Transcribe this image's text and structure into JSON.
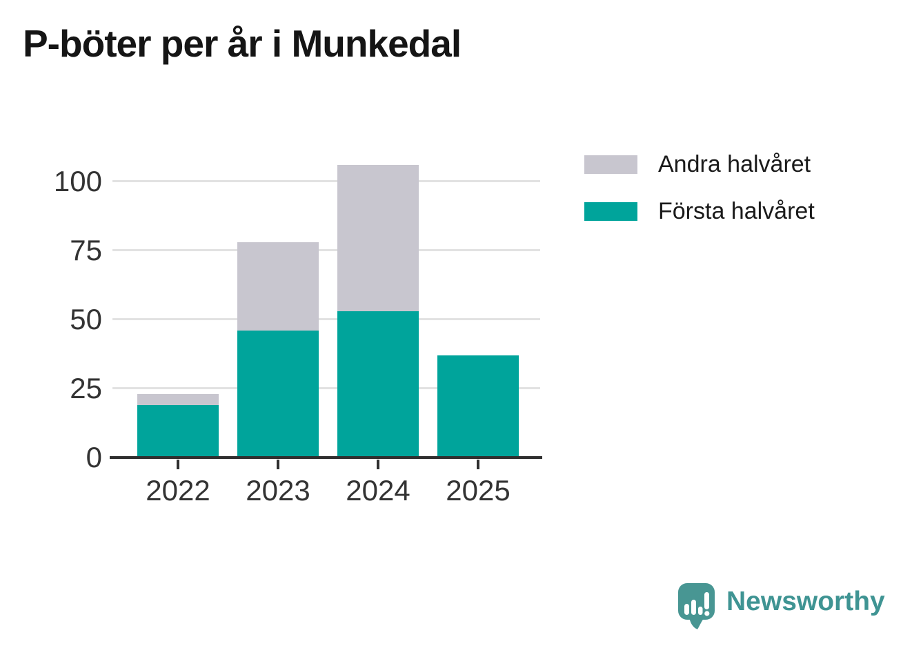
{
  "chart_data": {
    "type": "bar",
    "stacked": true,
    "title": "P-böter per år i Munkedal",
    "categories": [
      "2022",
      "2023",
      "2024",
      "2025"
    ],
    "series": [
      {
        "name": "Första halvåret",
        "values": [
          19,
          46,
          53,
          37
        ],
        "color": "#00a49b"
      },
      {
        "name": "Andra halvåret",
        "values": [
          4,
          32,
          53,
          0
        ],
        "color": "#c8c6cf"
      }
    ],
    "xlabel": "",
    "ylabel": "",
    "yticks": [
      0,
      25,
      50,
      75,
      100
    ],
    "ylim": [
      0,
      116
    ],
    "grid": true,
    "legend_position": "right-top",
    "legend_order": [
      "Andra halvåret",
      "Första halvåret"
    ]
  },
  "colors": {
    "background": "#ffffff",
    "title_text": "#151515",
    "axis_text": "#333333",
    "gridline": "#e2e2e2",
    "axis_line": "#2f2f2f",
    "first_half": "#00a49b",
    "second_half": "#c8c6cf",
    "logo_bubble": "#489693",
    "logo_word": "#3f9493"
  },
  "branding": {
    "logo_icon": "newsworthy-speech-bubble-chart-icon",
    "wordmark": "Newsworthy"
  }
}
